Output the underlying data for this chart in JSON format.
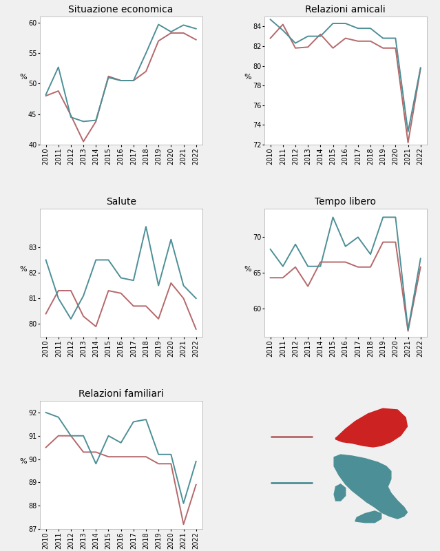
{
  "years": [
    2010,
    2011,
    2012,
    2013,
    2014,
    2015,
    2016,
    2017,
    2018,
    2019,
    2020,
    2021,
    2022
  ],
  "situazione_economica": {
    "title": "Situazione economica",
    "toscana": [
      48.0,
      48.8,
      44.8,
      40.5,
      43.8,
      51.2,
      50.5,
      50.5,
      52.0,
      57.0,
      58.3,
      58.3,
      57.2
    ],
    "italia": [
      48.2,
      52.7,
      44.5,
      43.8,
      44.0,
      51.0,
      50.5,
      50.5,
      55.0,
      59.7,
      58.5,
      59.6,
      59.0
    ],
    "ylim": [
      40,
      61
    ],
    "yticks": [
      40,
      45,
      50,
      55,
      60
    ]
  },
  "relazioni_amicali": {
    "title": "Relazioni amicali",
    "toscana": [
      82.8,
      84.2,
      81.8,
      81.9,
      83.2,
      81.8,
      82.8,
      82.5,
      82.5,
      81.8,
      81.8,
      72.2,
      79.7
    ],
    "italia": [
      84.7,
      83.6,
      82.3,
      83.0,
      83.0,
      84.3,
      84.3,
      83.8,
      83.8,
      82.8,
      82.8,
      73.3,
      79.8
    ],
    "ylim": [
      72,
      85
    ],
    "yticks": [
      72,
      74,
      76,
      78,
      80,
      82,
      84
    ]
  },
  "salute": {
    "title": "Salute",
    "toscana": [
      80.4,
      81.3,
      81.3,
      80.3,
      79.9,
      81.3,
      81.2,
      80.7,
      80.7,
      80.2,
      81.6,
      81.0,
      79.8
    ],
    "italia": [
      82.5,
      81.0,
      80.2,
      81.1,
      82.5,
      82.5,
      81.8,
      81.7,
      83.8,
      81.5,
      83.3,
      81.5,
      81.0
    ],
    "ylim": [
      79.5,
      84.5
    ],
    "yticks": [
      80,
      81,
      82,
      83
    ]
  },
  "tempo_libero": {
    "title": "Tempo libero",
    "toscana": [
      64.3,
      64.3,
      65.8,
      63.1,
      66.5,
      66.5,
      66.5,
      65.8,
      65.8,
      69.3,
      69.3,
      56.8,
      65.8
    ],
    "italia": [
      68.3,
      65.9,
      69.0,
      65.9,
      65.9,
      72.8,
      68.7,
      70.0,
      67.6,
      72.8,
      72.8,
      57.0,
      67.0
    ],
    "ylim": [
      56,
      74
    ],
    "yticks": [
      60,
      65,
      70
    ]
  },
  "relazioni_familiari": {
    "title": "Relazioni familiari",
    "toscana": [
      90.5,
      91.0,
      91.0,
      90.3,
      90.3,
      90.1,
      90.1,
      90.1,
      90.1,
      89.8,
      89.8,
      87.2,
      88.9
    ],
    "italia": [
      92.0,
      91.8,
      91.0,
      91.0,
      89.8,
      91.0,
      90.7,
      91.6,
      91.7,
      90.2,
      90.2,
      88.1,
      89.9
    ],
    "ylim": [
      87,
      92.5
    ],
    "yticks": [
      87,
      88,
      89,
      90,
      91,
      92
    ]
  },
  "color_toscana": "#b5686a",
  "color_italia": "#4d8f96",
  "linewidth": 1.4,
  "background_color": "#f0f0f0",
  "tick_fontsize": 7,
  "title_fontsize": 10,
  "toscana_shape_x": [
    0.55,
    0.58,
    0.64,
    0.72,
    0.82,
    0.88,
    0.9,
    0.88,
    0.85,
    0.8,
    0.75,
    0.68,
    0.6,
    0.55,
    0.52,
    0.53,
    0.55
  ],
  "toscana_shape_y": [
    0.72,
    0.78,
    0.83,
    0.88,
    0.9,
    0.88,
    0.82,
    0.75,
    0.7,
    0.66,
    0.65,
    0.66,
    0.68,
    0.7,
    0.7,
    0.71,
    0.72
  ],
  "italia_shape_x": [
    0.55,
    0.58,
    0.65,
    0.72,
    0.78,
    0.82,
    0.85,
    0.84,
    0.8,
    0.82,
    0.86,
    0.9,
    0.92,
    0.9,
    0.85,
    0.8,
    0.75,
    0.72,
    0.68,
    0.62,
    0.58,
    0.55,
    0.53,
    0.52,
    0.55
  ],
  "italia_shape_y": [
    0.58,
    0.62,
    0.62,
    0.6,
    0.57,
    0.54,
    0.5,
    0.44,
    0.4,
    0.34,
    0.28,
    0.22,
    0.17,
    0.13,
    0.11,
    0.14,
    0.18,
    0.22,
    0.26,
    0.3,
    0.34,
    0.38,
    0.42,
    0.48,
    0.58
  ]
}
